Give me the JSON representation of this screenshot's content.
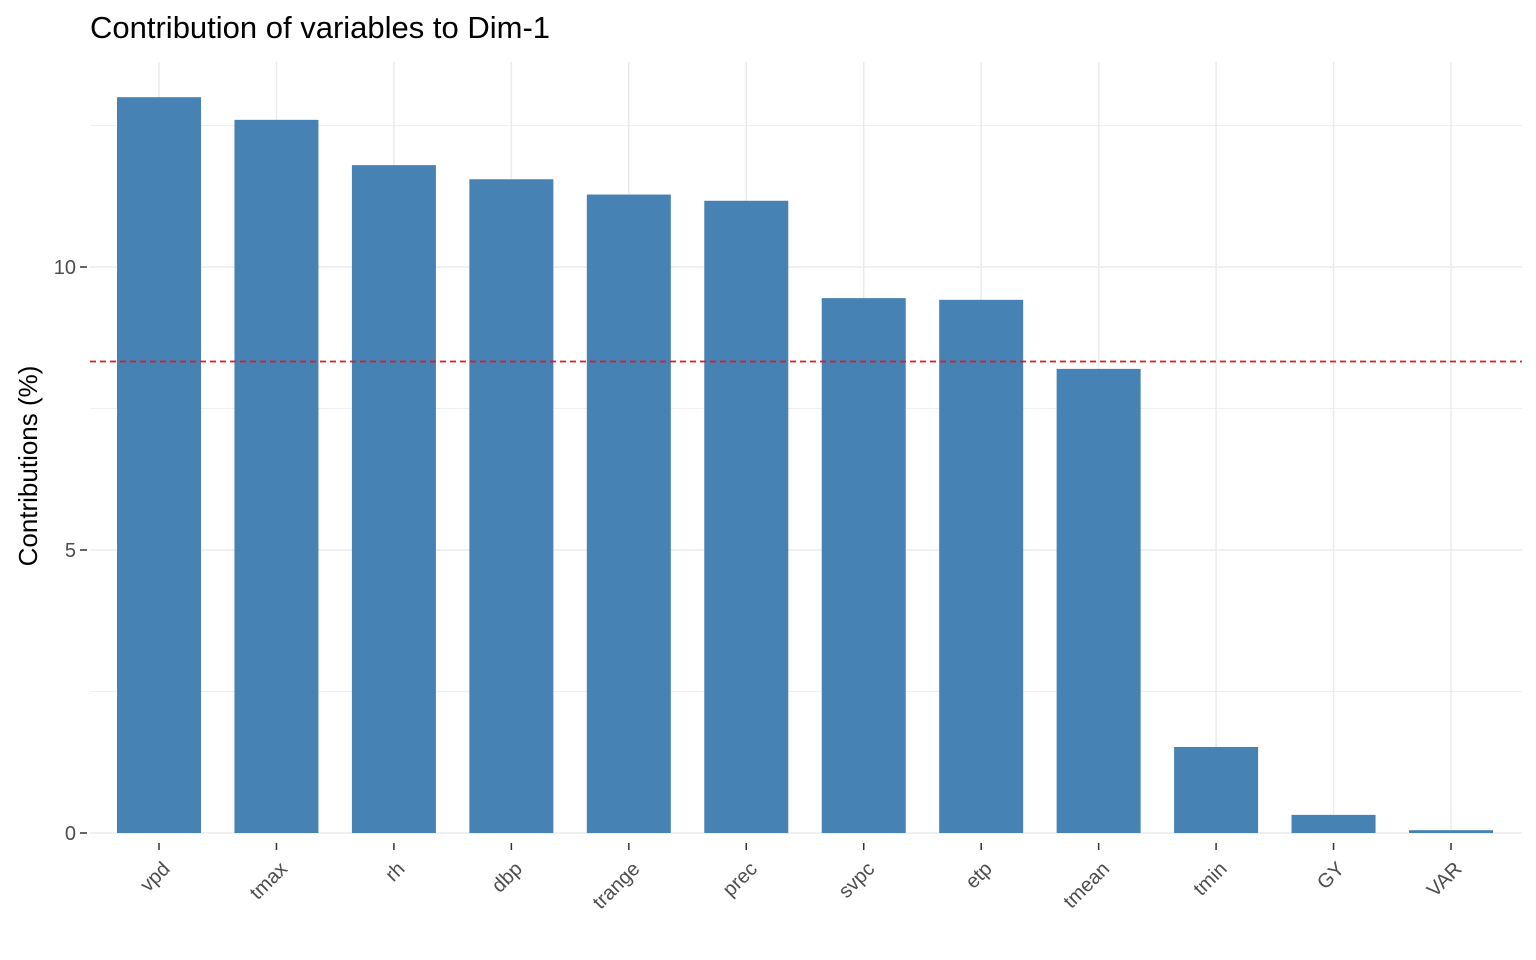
{
  "chart_data": {
    "type": "bar",
    "title": "Contribution of variables to Dim-1",
    "xlabel": "",
    "ylabel": "Contributions (%)",
    "categories": [
      "vpd",
      "tmax",
      "rh",
      "dbp",
      "trange",
      "prec",
      "svpc",
      "etp",
      "tmean",
      "tmin",
      "GY",
      "VAR"
    ],
    "values": [
      13.0,
      12.6,
      11.8,
      11.55,
      11.28,
      11.17,
      9.45,
      9.42,
      8.2,
      1.52,
      0.32,
      0.05
    ],
    "ylim": [
      0,
      13.0
    ],
    "yticks": [
      0,
      5,
      10
    ],
    "reference_line": {
      "value": 8.33,
      "color": "#e41a1c",
      "style": "dashed"
    },
    "bar_color": "#4682b4",
    "grid": true,
    "legend": "none"
  }
}
